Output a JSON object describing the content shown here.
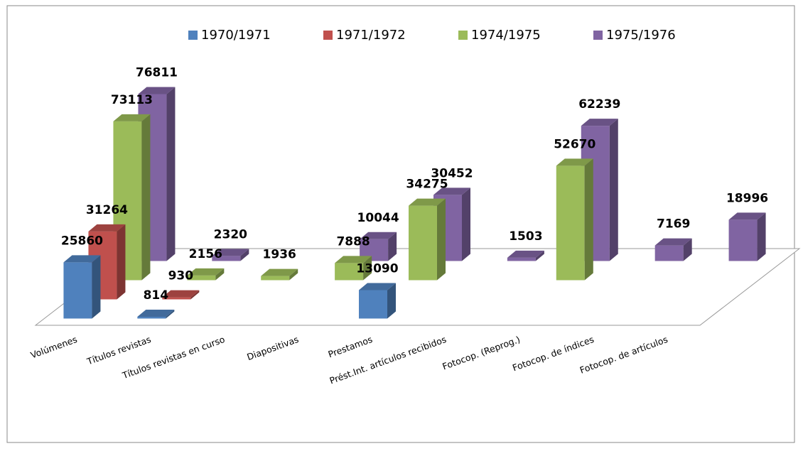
{
  "chart_data": {
    "type": "bar3d",
    "categories": [
      "Volúmenes",
      "Títulos revistas",
      "Títulos revistas en curso",
      "Diapositivas",
      "Prestamos",
      "Prést.Int. artículos recibidos",
      "Fotocop. (Reprog.)",
      "Fotocop. de índices",
      "Fotocop. de artículos"
    ],
    "series": [
      {
        "name": "1970/1971",
        "color": "#4f81bd",
        "values": [
          25860,
          814,
          null,
          null,
          13090,
          null,
          null,
          null,
          null
        ]
      },
      {
        "name": "1971/1972",
        "color": "#c0504d",
        "values": [
          31264,
          930,
          null,
          null,
          null,
          null,
          null,
          null,
          null
        ]
      },
      {
        "name": "1974/1975",
        "color": "#9bbb59",
        "values": [
          73113,
          2156,
          1936,
          7888,
          34275,
          null,
          52670,
          null,
          null
        ]
      },
      {
        "name": "1975/1976",
        "color": "#8064a2",
        "values": [
          76811,
          2320,
          null,
          10044,
          30452,
          1503,
          62239,
          7169,
          18996
        ]
      }
    ],
    "legend": "top"
  }
}
